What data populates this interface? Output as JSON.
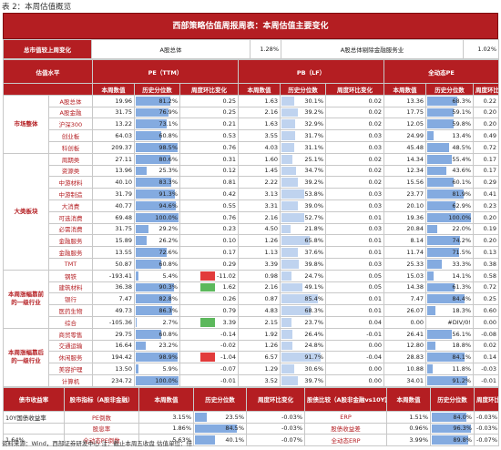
{
  "caption": "表 2：本周估值概览",
  "title": "西部策略估值周报周表：本周估值主要变化",
  "summary": {
    "label": "总市值较上周变化",
    "a": "A股总体",
    "a_val": "1.28%",
    "b": "A股总体剔除金融服务业",
    "b_val": "1.02%"
  },
  "headers": {
    "level": "估值水平",
    "pe": "PE（TTM）",
    "pb": "PB（LF）",
    "full": "全动态PE",
    "cur": "本周数值",
    "pct": "历史分位数",
    "wk": "周度环比变化"
  },
  "sections": [
    {
      "name": "市场整体",
      "rows": [
        [
          "A股总体",
          "19.96",
          "81.2%",
          "0.25",
          "1.63",
          "30.1%",
          "0.02",
          "13.36",
          "68.3%",
          "0.22"
        ],
        [
          "A股金融",
          "31.75",
          "76.9%",
          "0.25",
          "2.16",
          "39.2%",
          "0.02",
          "17.75",
          "59.1%",
          "0.20"
        ],
        [
          "沪深300",
          "13.22",
          "73.1%",
          "0.21",
          "1.63",
          "32.9%",
          "0.02",
          "12.05",
          "59.8%",
          "0.20"
        ],
        [
          "创业板",
          "64.03",
          "60.8%",
          "0.53",
          "3.55",
          "31.7%",
          "0.03",
          "24.99",
          "13.4%",
          "0.49"
        ],
        [
          "科创板",
          "209.37",
          "98.5%",
          "0.76",
          "4.03",
          "31.1%",
          "0.03",
          "45.48",
          "48.5%",
          "0.72"
        ]
      ]
    },
    {
      "name": "大类板块",
      "rows": [
        [
          "周期类",
          "27.11",
          "80.6%",
          "0.31",
          "1.60",
          "25.1%",
          "0.02",
          "14.34",
          "55.4%",
          "0.17"
        ],
        [
          "资源类",
          "13.96",
          "25.3%",
          "0.12",
          "1.45",
          "34.7%",
          "0.02",
          "12.34",
          "43.6%",
          "0.17"
        ],
        [
          "中游材料",
          "40.10",
          "83.3%",
          "0.81",
          "2.22",
          "39.2%",
          "0.02",
          "15.56",
          "60.1%",
          "0.29"
        ],
        [
          "中游制造",
          "31.79",
          "91.3%",
          "0.42",
          "3.13",
          "53.8%",
          "0.03",
          "23.77",
          "81.9%",
          "0.41"
        ],
        [
          "大消费",
          "40.77",
          "94.6%",
          "0.55",
          "3.31",
          "39.0%",
          "0.03",
          "20.10",
          "62.9%",
          "0.23"
        ],
        [
          "可选消费",
          "69.48",
          "100.0%",
          "0.76",
          "2.16",
          "52.7%",
          "0.01",
          "19.36",
          "100.0%",
          "0.20"
        ],
        [
          "必需消费",
          "31.75",
          "29.2%",
          "0.23",
          "4.50",
          "21.8%",
          "0.03",
          "20.84",
          "22.0%",
          "0.19"
        ],
        [
          "金融服务",
          "15.89",
          "26.2%",
          "0.10",
          "1.26",
          "65.8%",
          "0.01",
          "8.14",
          "74.2%",
          "0.20"
        ],
        [
          "金融服务",
          "13.55",
          "72.6%",
          "0.17",
          "1.13",
          "37.6%",
          "0.01",
          "11.74",
          "71.5%",
          "0.13"
        ],
        [
          "TMT",
          "50.87",
          "60.8%",
          "0.29",
          "3.39",
          "39.8%",
          "0.03",
          "25.33",
          "33.3%",
          "0.38"
        ]
      ]
    },
    {
      "name": "本周涨幅靠前的一级行业",
      "rows": [
        [
          "钢铁",
          "-193.41",
          "5.4%",
          "-11.02",
          "0.98",
          "24.7%",
          "0.05",
          "15.03",
          "14.1%",
          "0.58"
        ],
        [
          "建筑材料",
          "36.38",
          "90.3%",
          "1.62",
          "2.16",
          "49.1%",
          "0.05",
          "14.38",
          "61.3%",
          "0.72"
        ],
        [
          "银行",
          "7.47",
          "82.8%",
          "0.26",
          "0.87",
          "85.4%",
          "0.01",
          "7.47",
          "84.4%",
          "0.25"
        ],
        [
          "医药生物",
          "49.73",
          "86.3%",
          "0.79",
          "4.83",
          "68.3%",
          "0.01",
          "26.07",
          "18.3%",
          "0.60"
        ],
        [
          "综合",
          "-105.36",
          "2.7%",
          "3.39",
          "2.15",
          "23.7%",
          "0.04",
          "0.00",
          "#DIV/0!",
          "0.00"
        ]
      ]
    },
    {
      "name": "本周涨幅靠后的一级行业",
      "rows": [
        [
          "商贸零售",
          "29.75",
          "60.8%",
          "-0.14",
          "1.92",
          "26.4%",
          "-0.01",
          "26.41",
          "56.1%",
          "-0.08"
        ],
        [
          "交通运输",
          "16.64",
          "23.2%",
          "-0.02",
          "1.26",
          "24.8%",
          "0.00",
          "12.80",
          "18.8%",
          "0.02"
        ],
        [
          "休闲服务",
          "194.42",
          "98.9%",
          "-1.04",
          "6.57",
          "91.7%",
          "-0.04",
          "28.83",
          "84.1%",
          "0.14"
        ],
        [
          "美容护理",
          "13.50",
          "5.9%",
          "-0.07",
          "1.29",
          "30.6%",
          "0.00",
          "10.88",
          "11.8%",
          "-0.03"
        ],
        [
          "计算机",
          "234.72",
          "100.0%",
          "-0.01",
          "3.52",
          "39.7%",
          "0.00",
          "34.01",
          "91.2%",
          "-0.01"
        ]
      ]
    }
  ],
  "bottom": {
    "h1": "债市收益率",
    "h2": "股市指标（A股非金融）",
    "h3": "股债比较（A股非金融vs10Y国债）",
    "rows": [
      [
        "10Y国债收益率",
        "",
        "PE倒数",
        "3.15%",
        "23.5%",
        "-0.03%",
        "ERP",
        "1.51%",
        "84.0%",
        "-0.03%"
      ],
      [
        "",
        "",
        "股息率",
        "1.86%",
        "84.5%",
        "-0.03%",
        "股债收益差",
        "0.96%",
        "96.3%",
        "-0.03%"
      ],
      [
        "1.64%",
        "",
        "全动态PE倒数",
        "5.63%",
        "40.1%",
        "-0.07%",
        "全动态ERP",
        "3.99%",
        "89.8%",
        "-0.07%"
      ]
    ]
  },
  "footer": "资料来源：Wind，西部证券研发中心  注：截止本周五收盘 估值单位：倍"
}
